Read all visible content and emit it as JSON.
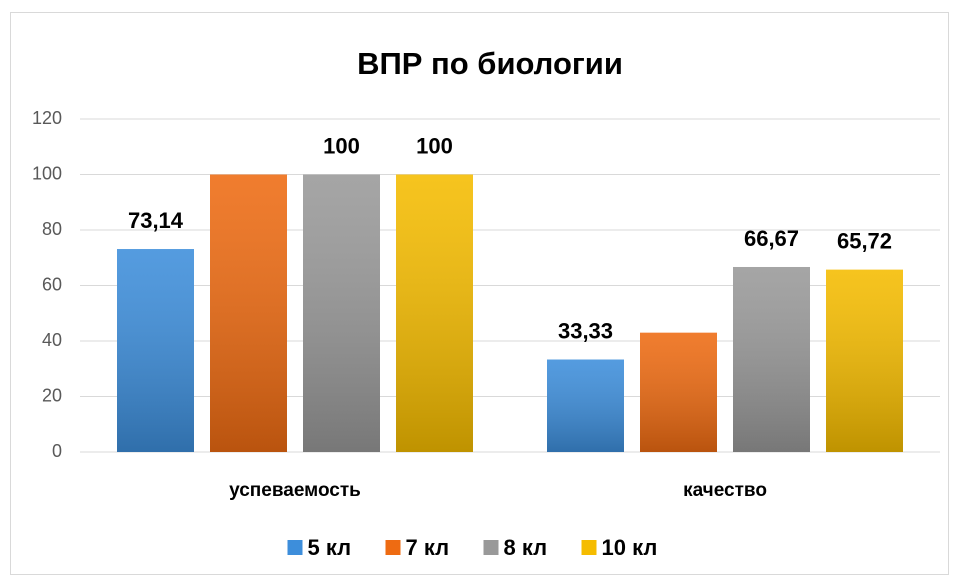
{
  "chart_data": {
    "type": "bar",
    "title": "ВПР по биологии",
    "categories": [
      "успеваемость",
      "качество"
    ],
    "series": [
      {
        "name": "5 кл",
        "color": "#3d8edb",
        "values": [
          73.14,
          33.33
        ],
        "value_labels": [
          "73,14",
          "33,33"
        ]
      },
      {
        "name": "7 кл",
        "color": "#ee6b12",
        "values": [
          100,
          43
        ],
        "value_labels": [
          null,
          null
        ]
      },
      {
        "name": "8 кл",
        "color": "#999999",
        "values": [
          100,
          66.67
        ],
        "value_labels": [
          "100",
          "66,67"
        ]
      },
      {
        "name": "10 кл",
        "color": "#f5bc00",
        "values": [
          100,
          65.72
        ],
        "value_labels": [
          "100",
          "65,72"
        ]
      }
    ],
    "ylim": [
      0,
      120
    ],
    "yticks": [
      0,
      20,
      40,
      60,
      80,
      100,
      120
    ],
    "grid": true,
    "legend": "bottom"
  }
}
